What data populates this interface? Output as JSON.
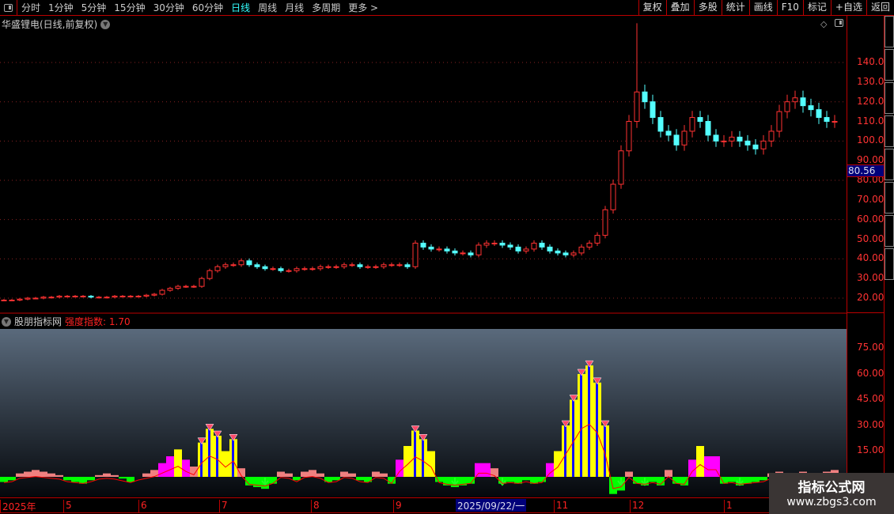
{
  "toolbar": {
    "periods": [
      "分时",
      "1分钟",
      "5分钟",
      "15分钟",
      "30分钟",
      "60分钟",
      "日线",
      "周线",
      "月线",
      "多周期",
      "更多 >"
    ],
    "active": "日线",
    "right_buttons": [
      "复权",
      "叠加",
      "多股",
      "统计",
      "画线",
      "F10",
      "标记",
      "+自选",
      "返回"
    ]
  },
  "main": {
    "title": "华盛锂电(日线,前复权)",
    "price_tag": "80.56",
    "y_ticks": [
      "140.0",
      "130.0",
      "120.0",
      "110.0",
      "100.0",
      "90.00",
      "80.00",
      "70.00",
      "60.00",
      "50.00",
      "40.00",
      "30.00",
      "20.00"
    ]
  },
  "indicator": {
    "name": "股朋指标网",
    "label": "强度指数: 1.70",
    "y_ticks": [
      "75.00",
      "60.00",
      "45.00",
      "30.00",
      "15.00"
    ]
  },
  "date_axis": {
    "labels": [
      "2025年",
      "5",
      "6",
      "7",
      "8",
      "9",
      "11",
      "12",
      "1"
    ],
    "highlight": "2025/09/22/一"
  },
  "watermark": {
    "line1": "指标公式网",
    "line2": "www.zbgs3.com"
  },
  "colors": {
    "up": "#ff3232",
    "down": "#54ffff",
    "axis": "#ff3232",
    "border": "#bb0000"
  },
  "chart_data": {
    "type": "candlestick",
    "y_range": [
      15,
      160
    ],
    "closes": [
      19,
      19,
      19.5,
      20,
      20,
      20.5,
      20.5,
      21,
      21,
      21,
      21,
      20.5,
      20.5,
      20.5,
      21,
      21,
      21,
      21,
      21.5,
      22,
      24,
      25,
      26,
      26,
      26,
      30,
      34,
      36,
      37,
      37,
      39,
      37,
      36,
      35,
      35,
      34,
      34,
      35,
      35,
      35,
      36,
      36,
      36,
      37,
      37,
      36,
      36,
      36,
      37,
      37,
      37,
      36,
      48,
      46,
      45,
      45,
      44,
      43,
      43,
      42,
      47,
      48,
      48,
      47,
      46,
      44,
      45,
      48,
      46,
      44,
      43,
      42,
      43,
      46,
      48,
      52,
      65,
      78,
      95,
      110,
      125,
      120,
      112,
      105,
      103,
      98,
      105,
      112,
      110,
      103,
      100,
      100,
      102,
      100,
      98,
      96,
      100,
      105,
      115,
      120,
      122,
      118,
      116,
      112,
      110,
      110
    ],
    "highs": [
      null,
      null,
      null,
      null,
      null,
      null,
      null,
      null,
      null,
      null,
      null,
      null,
      null,
      null,
      null,
      null,
      null,
      null,
      null,
      null,
      null,
      null,
      null,
      null,
      null,
      null,
      null,
      null,
      null,
      null,
      null,
      null,
      null,
      null,
      null,
      null,
      null,
      null,
      null,
      null,
      null,
      null,
      null,
      null,
      null,
      null,
      null,
      null,
      null,
      null,
      null,
      null,
      null,
      null,
      null,
      null,
      null,
      null,
      null,
      null,
      null,
      null,
      null,
      null,
      null,
      null,
      null,
      null,
      null,
      null,
      null,
      null,
      null,
      null,
      null,
      null,
      null,
      null,
      null,
      null,
      160
    ],
    "strength": [
      -3,
      -2,
      2,
      3,
      4,
      3,
      2,
      1,
      -2,
      -3,
      -4,
      -2,
      1,
      2,
      1,
      -1,
      -3,
      0,
      2,
      4,
      8,
      12,
      16,
      10,
      6,
      20,
      28,
      24,
      15,
      22,
      5,
      -5,
      -6,
      -7,
      -4,
      3,
      2,
      -2,
      3,
      4,
      2,
      -3,
      -2,
      3,
      2,
      -2,
      -3,
      3,
      2,
      -4,
      10,
      18,
      27,
      22,
      15,
      -3,
      -5,
      -6,
      -5,
      -4,
      8,
      8,
      5,
      -4,
      -3,
      -4,
      -2,
      -4,
      -3,
      8,
      15,
      30,
      45,
      60,
      65,
      55,
      30,
      -10,
      -8,
      3,
      -4,
      -5,
      -3,
      -5,
      4,
      -4,
      -5,
      10,
      18,
      12,
      12,
      -4,
      -3,
      -5,
      -4,
      -3,
      -2,
      2,
      3,
      -2,
      2,
      3,
      -3,
      2,
      3,
      4
    ]
  }
}
